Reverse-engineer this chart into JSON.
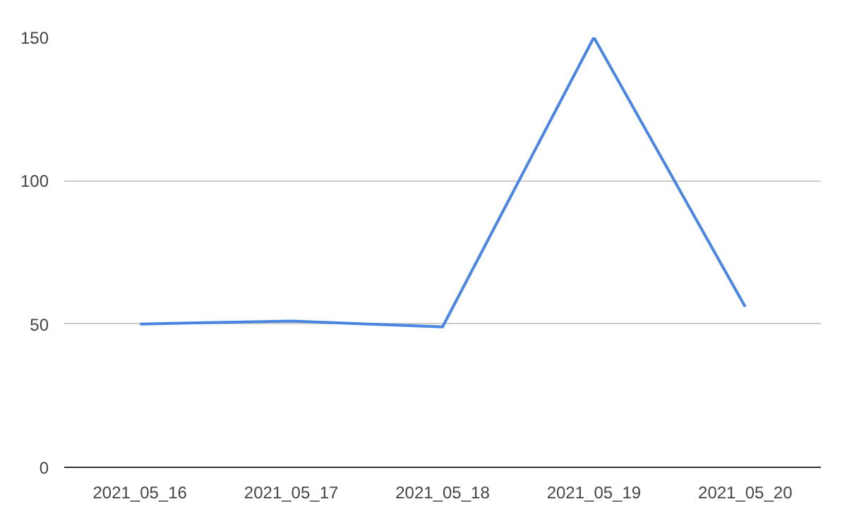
{
  "chart_data": {
    "type": "line",
    "categories": [
      "2021_05_16",
      "2021_05_17",
      "2021_05_18",
      "2021_05_19",
      "2021_05_20"
    ],
    "series": [
      {
        "color": "#4a86e0",
        "values": [
          50,
          51,
          49,
          150,
          56
        ]
      }
    ],
    "ylim": [
      0,
      150
    ],
    "yticks": [
      0,
      50,
      100,
      150
    ],
    "grid": "y"
  }
}
